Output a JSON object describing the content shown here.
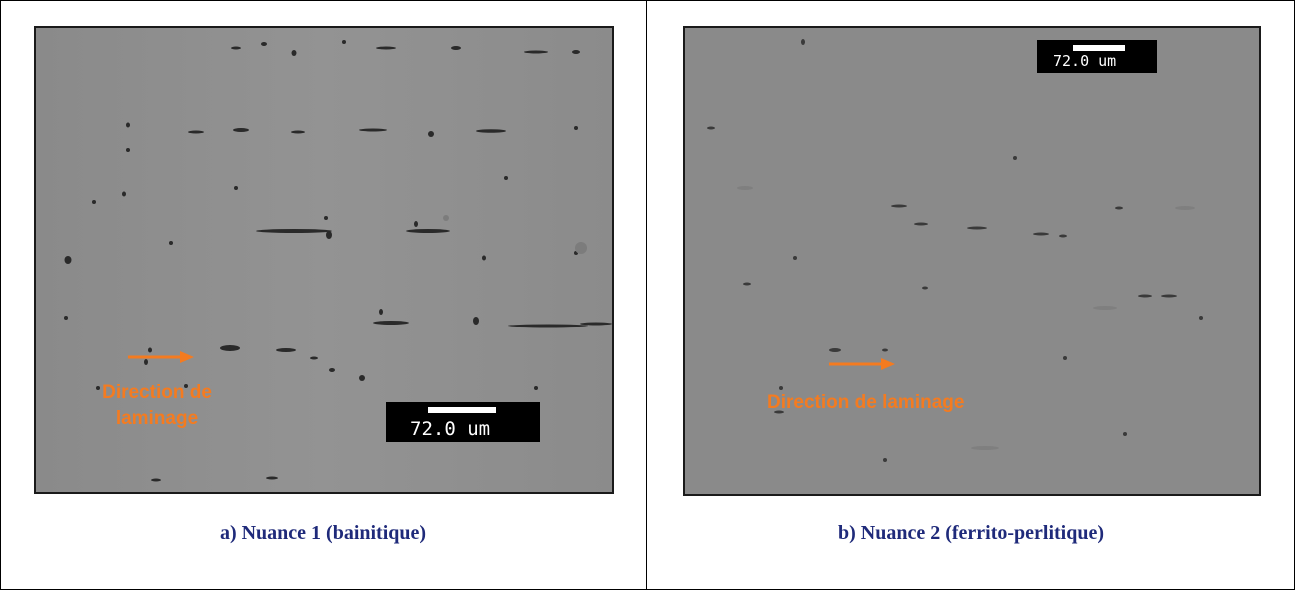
{
  "panels": [
    {
      "caption": "a) Nuance 1 (bainitique)",
      "scale_bar": "72.0 um",
      "direction_label_line1": "Direction de",
      "direction_label_line2": "laminage",
      "background_color": "#8c8c8c"
    },
    {
      "caption": "b) Nuance 2 (ferrito-perlitique)",
      "scale_bar": "72.0 um",
      "direction_label": "Direction de laminage",
      "background_color": "#8a8a8a"
    }
  ],
  "colors": {
    "label_orange": "#f47b20",
    "caption_blue": "#1f2a7a",
    "border": "#000000"
  },
  "icons": {
    "direction_arrow": "right-arrow-icon"
  }
}
